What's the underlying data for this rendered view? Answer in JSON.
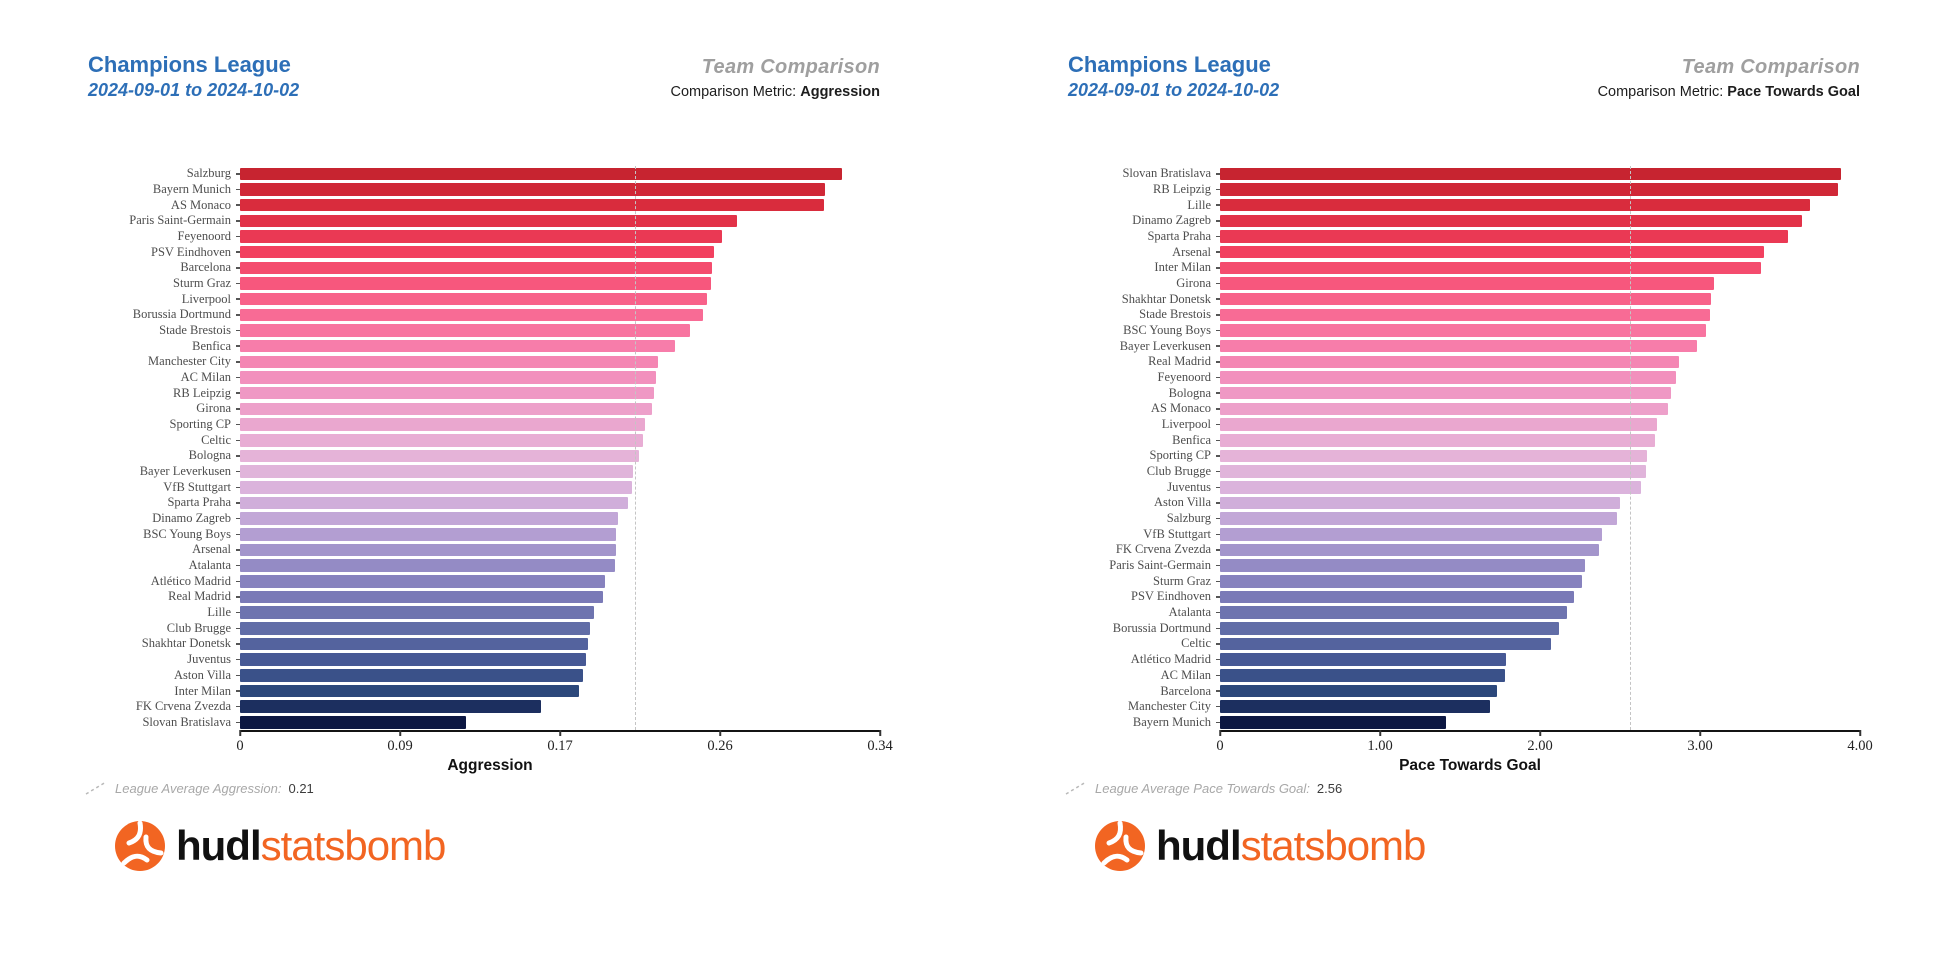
{
  "footer": {
    "logo_bold": "hudl",
    "logo_light": "statsbomb"
  },
  "colors": {
    "title_blue": "#2d6fb7",
    "heading_gray": "#9f9f9f",
    "metric_text": "#1d1d1d",
    "team_label_gray": "#4d4d4d",
    "axis_black": "#141414",
    "average_dash_gray": "#c4c4c4",
    "logo_orange": "#f26522",
    "logo_black": "#111111",
    "bar_gradient_stops": [
      [
        0.0,
        "#c72430"
      ],
      [
        0.06,
        "#da2c3e"
      ],
      [
        0.14,
        "#f23f5e"
      ],
      [
        0.22,
        "#f85f87"
      ],
      [
        0.3,
        "#f878a5"
      ],
      [
        0.38,
        "#f193c0"
      ],
      [
        0.46,
        "#eaa8d0"
      ],
      [
        0.52,
        "#e5b4d9"
      ],
      [
        0.58,
        "#d9b3dc"
      ],
      [
        0.64,
        "#bda4d6"
      ],
      [
        0.7,
        "#9b90c8"
      ],
      [
        0.76,
        "#7f7cba"
      ],
      [
        0.82,
        "#6570aa"
      ],
      [
        0.88,
        "#4a5b97"
      ],
      [
        0.94,
        "#2e4a7e"
      ],
      [
        1.0,
        "#0c1742"
      ]
    ]
  },
  "chart_data": [
    {
      "type": "bar",
      "orientation": "horizontal",
      "title": "Champions League",
      "subtitle": "2024-09-01 to 2024-10-02",
      "heading": "Team Comparison",
      "metric_prefix": "Comparison Metric: ",
      "metric_name": "Aggression",
      "xlabel": "Aggression",
      "legend_label": "League Average Aggression:",
      "legend_value": "0.21",
      "average": 0.21,
      "xlim": [
        0,
        0.34
      ],
      "ticks": [
        "0",
        "0.09",
        "0.17",
        "0.26",
        "0.34"
      ],
      "grid": false,
      "legend_position": "bottom-left",
      "categories": [
        "Salzburg",
        "Bayern Munich",
        "AS Monaco",
        "Paris Saint-Germain",
        "Feyenoord",
        "PSV Eindhoven",
        "Barcelona",
        "Sturm Graz",
        "Liverpool",
        "Borussia Dortmund",
        "Stade Brestois",
        "Benfica",
        "Manchester City",
        "AC Milan",
        "RB Leipzig",
        "Girona",
        "Sporting CP",
        "Celtic",
        "Bologna",
        "Bayer Leverkusen",
        "VfB Stuttgart",
        "Sparta Praha",
        "Dinamo Zagreb",
        "BSC Young Boys",
        "Arsenal",
        "Atalanta",
        "Atlético Madrid",
        "Real Madrid",
        "Lille",
        "Club Brugge",
        "Shakhtar Donetsk",
        "Juventus",
        "Aston Villa",
        "Inter Milan",
        "FK Crvena Zvezda",
        "Slovan Bratislava"
      ],
      "values": [
        0.32,
        0.311,
        0.31,
        0.264,
        0.256,
        0.252,
        0.251,
        0.25,
        0.248,
        0.246,
        0.239,
        0.231,
        0.222,
        0.221,
        0.22,
        0.219,
        0.215,
        0.214,
        0.212,
        0.209,
        0.208,
        0.206,
        0.201,
        0.2,
        0.2,
        0.199,
        0.194,
        0.193,
        0.188,
        0.186,
        0.185,
        0.184,
        0.182,
        0.18,
        0.16,
        0.12
      ]
    },
    {
      "type": "bar",
      "orientation": "horizontal",
      "title": "Champions League",
      "subtitle": "2024-09-01 to 2024-10-02",
      "heading": "Team Comparison",
      "metric_prefix": "Comparison Metric: ",
      "metric_name": "Pace Towards Goal",
      "xlabel": "Pace Towards Goal",
      "legend_label": "League Average Pace Towards Goal:",
      "legend_value": "2.56",
      "average": 2.56,
      "xlim": [
        0,
        4.0
      ],
      "ticks": [
        "0",
        "1.00",
        "2.00",
        "3.00",
        "4.00"
      ],
      "grid": false,
      "legend_position": "bottom-left",
      "categories": [
        "Slovan Bratislava",
        "RB Leipzig",
        "Lille",
        "Dinamo Zagreb",
        "Sparta Praha",
        "Arsenal",
        "Inter Milan",
        "Girona",
        "Shakhtar Donetsk",
        "Stade Brestois",
        "BSC Young Boys",
        "Bayer Leverkusen",
        "Real Madrid",
        "Feyenoord",
        "Bologna",
        "AS Monaco",
        "Liverpool",
        "Benfica",
        "Sporting CP",
        "Club Brugge",
        "Juventus",
        "Aston Villa",
        "Salzburg",
        "VfB Stuttgart",
        "FK Crvena Zvezda",
        "Paris Saint-Germain",
        "Sturm Graz",
        "PSV Eindhoven",
        "Atalanta",
        "Borussia Dortmund",
        "Celtic",
        "Atlético Madrid",
        "AC Milan",
        "Barcelona",
        "Manchester City",
        "Bayern Munich"
      ],
      "values": [
        3.88,
        3.86,
        3.69,
        3.64,
        3.55,
        3.4,
        3.38,
        3.09,
        3.07,
        3.06,
        3.04,
        2.98,
        2.87,
        2.85,
        2.82,
        2.8,
        2.73,
        2.72,
        2.67,
        2.66,
        2.63,
        2.5,
        2.48,
        2.39,
        2.37,
        2.28,
        2.26,
        2.21,
        2.17,
        2.12,
        2.07,
        1.79,
        1.78,
        1.73,
        1.69,
        1.41
      ]
    }
  ]
}
